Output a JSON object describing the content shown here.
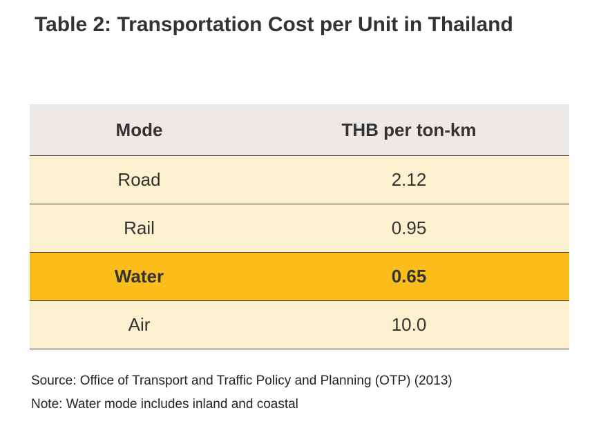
{
  "title": "Table 2: Transportation Cost per Unit in Thailand",
  "table": {
    "headers": [
      "Mode",
      "THB per ton-km"
    ],
    "rows": [
      {
        "mode": "Road",
        "cost": "2.12"
      },
      {
        "mode": "Rail",
        "cost": "0.95"
      },
      {
        "mode": "Water",
        "cost": "0.65",
        "highlighted": true
      },
      {
        "mode": "Air",
        "cost": "10.0"
      }
    ]
  },
  "source": "Source: Office of Transport and Traffic Policy and Planning (OTP) (2013)",
  "note": "Note: Water mode includes inland and coastal",
  "colors": {
    "header_bg": "#ede9e6",
    "row_bg": "#fdf0ce",
    "highlight_bg": "#fbbd1c",
    "text": "#333333"
  }
}
